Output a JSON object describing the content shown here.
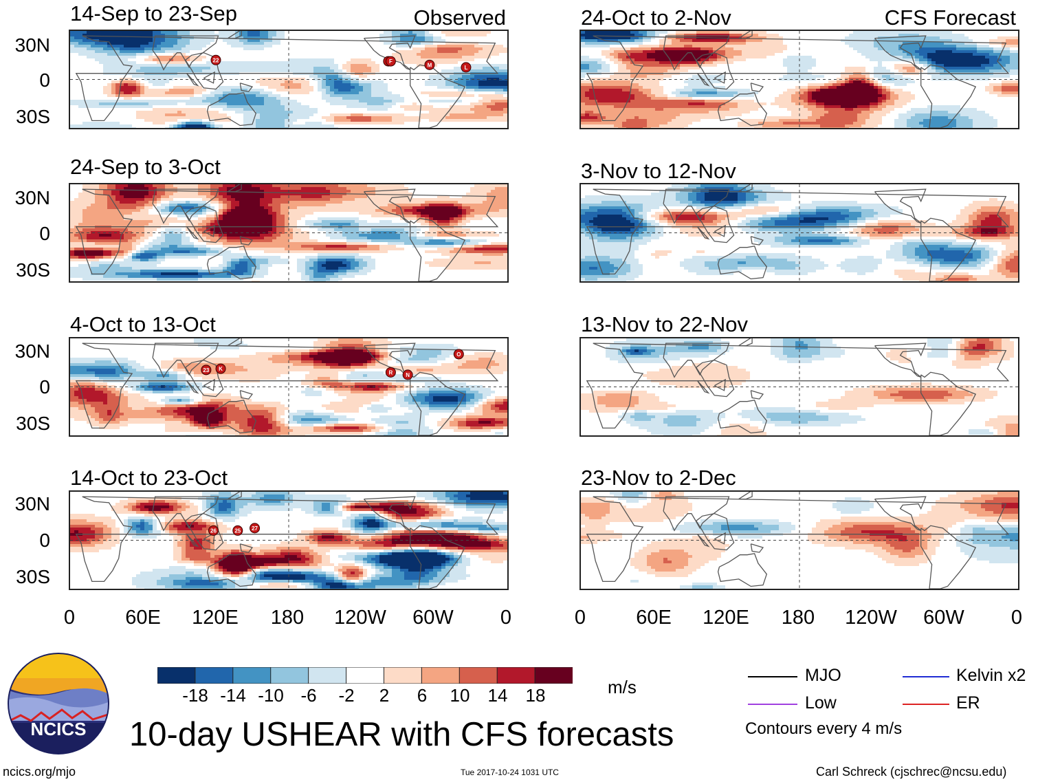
{
  "headers": {
    "observed": "Observed",
    "forecast": "CFS Forecast"
  },
  "observed_panels": [
    {
      "title": "14-Sep to 23-Sep",
      "storms": [
        {
          "label": "22",
          "lon": 120,
          "lat": 16
        },
        {
          "label": "N",
          "lon": -98,
          "lat": 15
        },
        {
          "label": "F",
          "lon": -96,
          "lat": 15
        },
        {
          "label": "M",
          "lon": -64,
          "lat": 12
        },
        {
          "label": "L",
          "lon": -34,
          "lat": 10
        }
      ]
    },
    {
      "title": "24-Sep to 3-Oct",
      "storms": []
    },
    {
      "title": "4-Oct to 13-Oct",
      "storms": [
        {
          "label": "23",
          "lon": 112,
          "lat": 14
        },
        {
          "label": "K",
          "lon": 124,
          "lat": 15
        },
        {
          "label": "R",
          "lon": -96,
          "lat": 12
        },
        {
          "label": "N",
          "lon": -82,
          "lat": 10
        },
        {
          "label": "O",
          "lon": -40,
          "lat": 27
        }
      ]
    },
    {
      "title": "14-Oct to 23-Oct",
      "storms": [
        {
          "label": "26",
          "lon": 118,
          "lat": 8
        },
        {
          "label": "25",
          "lon": 138,
          "lat": 8
        },
        {
          "label": "27",
          "lon": 152,
          "lat": 10
        }
      ]
    }
  ],
  "forecast_panels": [
    {
      "title": "24-Oct to 2-Nov"
    },
    {
      "title": "3-Nov to 12-Nov"
    },
    {
      "title": "13-Nov to 22-Nov"
    },
    {
      "title": "23-Nov to 2-Dec"
    }
  ],
  "axes": {
    "lat_labels": [
      "30N",
      "0",
      "30S"
    ],
    "lon_labels": [
      "0",
      "60E",
      "120E",
      "180",
      "120W",
      "60W",
      "0"
    ]
  },
  "colorbar": {
    "labels": [
      "-18",
      "-14",
      "-10",
      "-6",
      "-2",
      "2",
      "6",
      "10",
      "14",
      "18"
    ],
    "colors": [
      "#08306b",
      "#2166ac",
      "#4393c3",
      "#92c5de",
      "#d1e5f0",
      "#ffffff",
      "#fddbc7",
      "#f4a582",
      "#d6604d",
      "#b2182b",
      "#67001f"
    ],
    "units": "m/s"
  },
  "legend": {
    "items": [
      {
        "label": "MJO",
        "color": "#000000"
      },
      {
        "label": "Kelvin x2",
        "color": "#1f2bd4"
      },
      {
        "label": "Low",
        "color": "#a040e0"
      },
      {
        "label": "ER",
        "color": "#dd2222"
      }
    ],
    "note": "Contours every 4 m/s"
  },
  "logo": {
    "text": "NCICS"
  },
  "title": "10-day USHEAR with CFS forecasts",
  "footer": {
    "url": "ncics.org/mjo",
    "timestamp": "Tue 2017-10-24 1031 UTC",
    "credit": "Carl Schreck (cjschrec@ncsu.edu)"
  }
}
